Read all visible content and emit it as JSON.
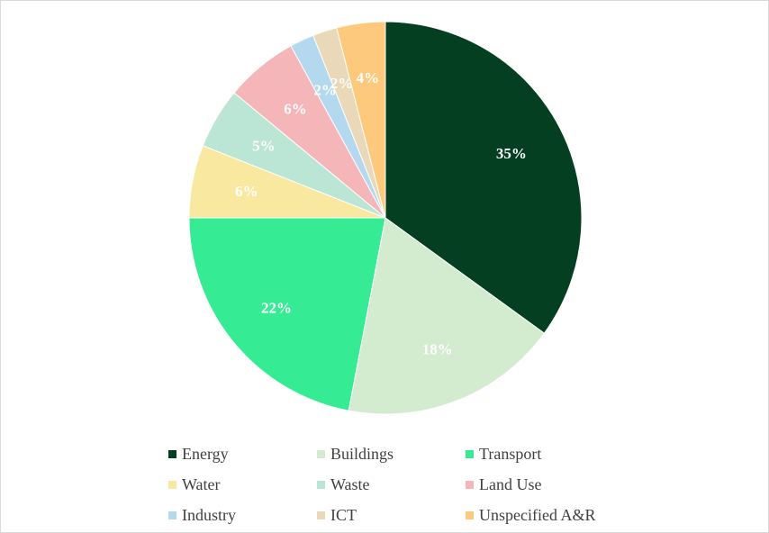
{
  "chart_data": {
    "type": "pie",
    "title": "",
    "labels": [
      "Energy",
      "Buildings",
      "Transport",
      "Water",
      "Waste",
      "Land Use",
      "Industry",
      "ICT",
      "Unspecified A&R"
    ],
    "values": [
      35,
      18,
      22,
      6,
      5,
      6,
      2,
      2,
      4
    ],
    "value_labels": [
      "35%",
      "18%",
      "22%",
      "6%",
      "5%",
      "6%",
      "2%",
      "2%",
      "4%"
    ],
    "colors": [
      "#053f22",
      "#d3ebcf",
      "#35eb93",
      "#f9e8a0",
      "#bbe5d4",
      "#f4b6b8",
      "#b4d9ef",
      "#ead9b8",
      "#fdc97c"
    ],
    "legend_position": "bottom",
    "start_angle": "12 o'clock",
    "direction": "clockwise"
  }
}
